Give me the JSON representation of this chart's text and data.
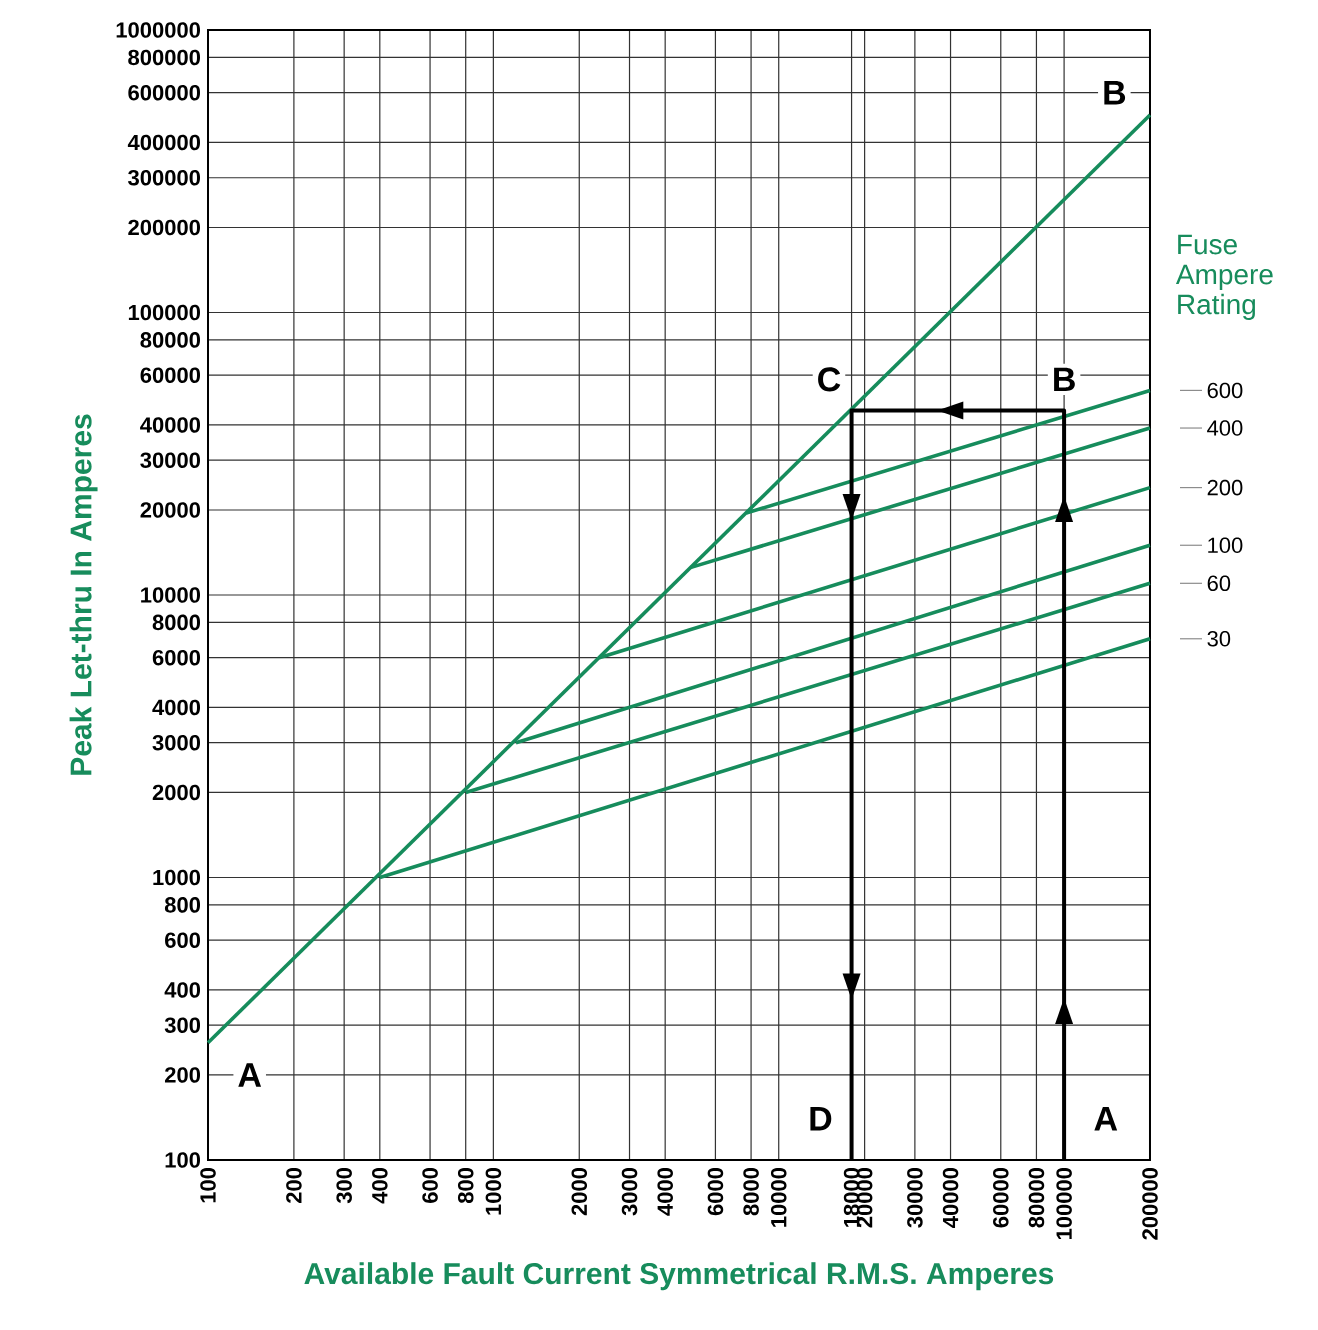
{
  "chart_data": {
    "type": "line",
    "xlabel": "Available Fault Current Symmetrical R.M.S. Amperes",
    "ylabel": "Peak Let-thru In Amperes",
    "legend_title": "Fuse Ampere Rating",
    "log": "xy",
    "grid": true,
    "xlim": [
      100,
      200000
    ],
    "ylim": [
      100,
      1000000
    ],
    "xticks": [
      100,
      200,
      300,
      400,
      600,
      800,
      1000,
      2000,
      3000,
      4000,
      6000,
      8000,
      10000,
      18000,
      20000,
      30000,
      40000,
      60000,
      80000,
      100000,
      200000
    ],
    "yticks": [
      100,
      200,
      300,
      400,
      600,
      800,
      1000,
      2000,
      3000,
      4000,
      6000,
      8000,
      10000,
      20000,
      30000,
      40000,
      60000,
      80000,
      100000,
      200000,
      300000,
      400000,
      600000,
      800000,
      1000000
    ],
    "series": [
      {
        "color": "#168c5c",
        "x": [
          100,
          200000
        ],
        "values": [
          260,
          500000
        ]
      },
      {
        "name": "600",
        "color": "#168c5c",
        "x": [
          7700,
          200000
        ],
        "values": [
          19500,
          53000
        ]
      },
      {
        "name": "400",
        "color": "#168c5c",
        "x": [
          4900,
          200000
        ],
        "values": [
          12500,
          39000
        ]
      },
      {
        "name": "200",
        "color": "#168c5c",
        "x": [
          2350,
          200000
        ],
        "values": [
          6000,
          24000
        ]
      },
      {
        "name": "100",
        "color": "#168c5c",
        "x": [
          1200,
          200000
        ],
        "values": [
          3000,
          15000
        ]
      },
      {
        "name": "60",
        "color": "#168c5c",
        "x": [
          800,
          200000
        ],
        "values": [
          2000,
          11000
        ]
      },
      {
        "name": "30",
        "color": "#168c5c",
        "x": [
          400,
          200000
        ],
        "values": [
          1000,
          7000
        ]
      },
      {
        "color": "#000000",
        "x": [
          100000,
          100000,
          18000,
          18000
        ],
        "values": [
          100,
          45000,
          45000,
          100
        ]
      }
    ],
    "annotations": [
      {
        "text": "A",
        "x": 140,
        "y": 200
      },
      {
        "text": "B",
        "x": 150000,
        "y": 600000
      },
      {
        "text": "C",
        "x": 15000,
        "y": 58000
      },
      {
        "text": "B",
        "x": 100000,
        "y": 58000
      },
      {
        "text": "D",
        "x": 14000,
        "y": 140
      },
      {
        "text": "A",
        "x": 140000,
        "y": 140
      }
    ]
  }
}
